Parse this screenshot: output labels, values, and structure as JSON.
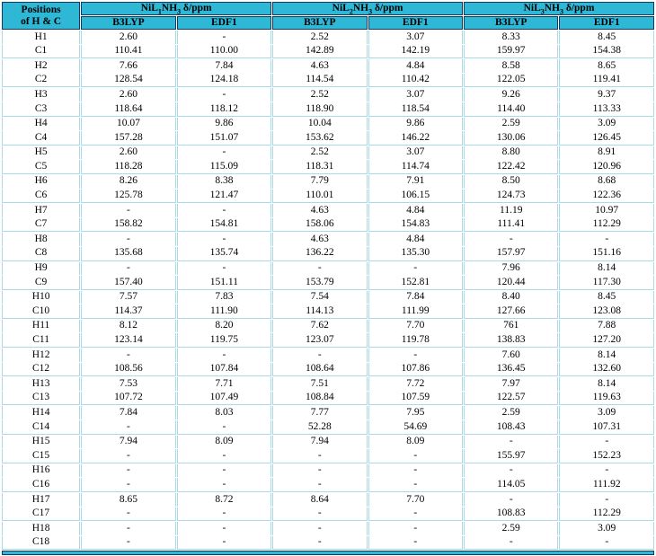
{
  "colors": {
    "header_bg": "#2fb7d6",
    "dark_border": "#17395c",
    "light_border": "#a9dbe6",
    "text": "#000000"
  },
  "table": {
    "corner": {
      "line1": "Positions",
      "line2": "of H & C"
    },
    "groups": [
      {
        "pre": "NiL",
        "sub1": "1",
        "mid": "NH",
        "sub2": "3",
        "post": " δ/ppm"
      },
      {
        "pre": "NiL",
        "sub1": "2",
        "mid": "NH",
        "sub2": "3",
        "post": " δ/ppm"
      },
      {
        "pre": "NiL",
        "sub1": "3",
        "mid": "NH",
        "sub2": "3",
        "post": " δ/ppm"
      }
    ],
    "method_cols": [
      "B3LYP",
      "EDF1",
      "B3LYP",
      "EDF1",
      "B3LYP",
      "EDF1"
    ],
    "rows": [
      {
        "label": "H1",
        "values": [
          "2.60",
          "-",
          "2.52",
          "3.07",
          "8.33",
          "8.45"
        ]
      },
      {
        "label": "C1",
        "values": [
          "110.41",
          "110.00",
          "142.89",
          "142.19",
          "159.97",
          "154.38"
        ]
      },
      {
        "label": "H2",
        "values": [
          "7.66",
          "7.84",
          "4.63",
          "4.84",
          "8.58",
          "8.65"
        ]
      },
      {
        "label": "C2",
        "values": [
          "128.54",
          "124.18",
          "114.54",
          "110.42",
          "122.05",
          "119.41"
        ]
      },
      {
        "label": "H3",
        "values": [
          "2.60",
          "-",
          "2.52",
          "3.07",
          "9.26",
          "9.37"
        ]
      },
      {
        "label": "C3",
        "values": [
          "118.64",
          "118.12",
          "118.90",
          "118.54",
          "114.40",
          "113.33"
        ]
      },
      {
        "label": "H4",
        "values": [
          "10.07",
          "9.86",
          "10.04",
          "9.86",
          "2.59",
          "3.09"
        ]
      },
      {
        "label": "C4",
        "values": [
          "157.28",
          "151.07",
          "153.62",
          "146.22",
          "130.06",
          "126.45"
        ]
      },
      {
        "label": "H5",
        "values": [
          "2.60",
          "-",
          "2.52",
          "3.07",
          "8.80",
          "8.91"
        ]
      },
      {
        "label": "C5",
        "values": [
          "118.28",
          "115.09",
          "118.31",
          "114.74",
          "122.42",
          "120.96"
        ]
      },
      {
        "label": "H6",
        "values": [
          "8.26",
          "8.38",
          "7.79",
          "7.91",
          "8.50",
          "8.68"
        ]
      },
      {
        "label": "C6",
        "values": [
          "125.78",
          "121.47",
          "110.01",
          "106.15",
          "124.73",
          "122.36"
        ]
      },
      {
        "label": "H7",
        "values": [
          "-",
          "-",
          "4.63",
          "4.84",
          "11.19",
          "10.97"
        ]
      },
      {
        "label": "C7",
        "values": [
          "158.82",
          "154.81",
          "158.06",
          "154.83",
          "111.41",
          "112.29"
        ]
      },
      {
        "label": "H8",
        "values": [
          "-",
          "-",
          "4.63",
          "4.84",
          "-",
          "-"
        ]
      },
      {
        "label": "C8",
        "values": [
          "135.68",
          "135.74",
          "136.22",
          "135.30",
          "157.97",
          "151.16"
        ]
      },
      {
        "label": "H9",
        "values": [
          "-",
          "-",
          "-",
          "-",
          "7.96",
          "8.14"
        ]
      },
      {
        "label": "C9",
        "values": [
          "157.40",
          "151.11",
          "153.79",
          "152.81",
          "120.44",
          "117.30"
        ]
      },
      {
        "label": "H10",
        "values": [
          "7.57",
          "7.83",
          "7.54",
          "7.84",
          "8.40",
          "8.45"
        ]
      },
      {
        "label": "C10",
        "values": [
          "114.37",
          "111.90",
          "114.13",
          "111.99",
          "127.66",
          "123.08"
        ]
      },
      {
        "label": "H11",
        "values": [
          "8.12",
          "8.20",
          "7.62",
          "7.70",
          "761",
          "7.88"
        ]
      },
      {
        "label": "C11",
        "values": [
          "123.14",
          "119.75",
          "123.07",
          "119.78",
          "138.83",
          "127.20"
        ]
      },
      {
        "label": "H12",
        "values": [
          "-",
          "-",
          "-",
          "-",
          "7.60",
          "8.14"
        ]
      },
      {
        "label": "C12",
        "values": [
          "108.56",
          "107.84",
          "108.64",
          "107.86",
          "136.45",
          "132.60"
        ]
      },
      {
        "label": "H13",
        "values": [
          "7.53",
          "7.71",
          "7.51",
          "7.72",
          "7.97",
          "8.14"
        ]
      },
      {
        "label": "C13",
        "values": [
          "107.72",
          "107.49",
          "108.84",
          "107.59",
          "122.57",
          "119.63"
        ]
      },
      {
        "label": "H14",
        "values": [
          "7.84",
          "8.03",
          "7.77",
          "7.95",
          "2.59",
          "3.09"
        ]
      },
      {
        "label": "C14",
        "values": [
          "-",
          "-",
          "52.28",
          "54.69",
          "108.43",
          "107.31"
        ]
      },
      {
        "label": "H15",
        "values": [
          "7.94",
          "8.09",
          "7.94",
          "8.09",
          "-",
          "-"
        ]
      },
      {
        "label": "C15",
        "values": [
          "-",
          "-",
          "-",
          "-",
          "155.97",
          "152.23"
        ]
      },
      {
        "label": "H16",
        "values": [
          "-",
          "-",
          "-",
          "-",
          "-",
          "-"
        ]
      },
      {
        "label": "C16",
        "values": [
          "-",
          "-",
          "-",
          "-",
          "114.05",
          "111.92"
        ]
      },
      {
        "label": "H17",
        "values": [
          "8.65",
          "8.72",
          "8.64",
          "7.70",
          "-",
          "-"
        ]
      },
      {
        "label": "C17",
        "values": [
          "-",
          "-",
          "-",
          "-",
          "108.83",
          "112.29"
        ]
      },
      {
        "label": "H18",
        "values": [
          "-",
          "-",
          "-",
          "-",
          "2.59",
          "3.09"
        ]
      },
      {
        "label": "C18",
        "values": [
          "-",
          "-",
          "-",
          "-",
          "-",
          "-"
        ]
      }
    ]
  }
}
